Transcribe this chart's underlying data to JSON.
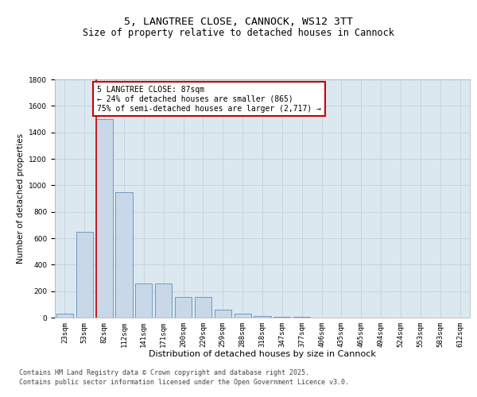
{
  "title1": "5, LANGTREE CLOSE, CANNOCK, WS12 3TT",
  "title2": "Size of property relative to detached houses in Cannock",
  "xlabel": "Distribution of detached houses by size in Cannock",
  "ylabel": "Number of detached properties",
  "categories": [
    "23sqm",
    "53sqm",
    "82sqm",
    "112sqm",
    "141sqm",
    "171sqm",
    "200sqm",
    "229sqm",
    "259sqm",
    "288sqm",
    "318sqm",
    "347sqm",
    "377sqm",
    "406sqm",
    "435sqm",
    "465sqm",
    "494sqm",
    "524sqm",
    "553sqm",
    "583sqm",
    "612sqm"
  ],
  "values": [
    30,
    650,
    1500,
    950,
    260,
    260,
    155,
    155,
    60,
    30,
    15,
    5,
    5,
    2,
    2,
    0,
    0,
    0,
    0,
    0,
    0
  ],
  "bar_color": "#c8d8e8",
  "bar_edge_color": "#6090b8",
  "vline_x_index": 2,
  "vline_color": "#cc0000",
  "annotation_text": "5 LANGTREE CLOSE: 87sqm\n← 24% of detached houses are smaller (865)\n75% of semi-detached houses are larger (2,717) →",
  "annotation_box_facecolor": "#ffffff",
  "annotation_box_edgecolor": "#cc0000",
  "ylim": [
    0,
    1800
  ],
  "yticks": [
    0,
    200,
    400,
    600,
    800,
    1000,
    1200,
    1400,
    1600,
    1800
  ],
  "grid_color": "#c8d4dc",
  "bg_color": "#dce8f0",
  "footer1": "Contains HM Land Registry data © Crown copyright and database right 2025.",
  "footer2": "Contains public sector information licensed under the Open Government Licence v3.0.",
  "title1_fontsize": 9.5,
  "title2_fontsize": 8.5,
  "tick_fontsize": 6.5,
  "ylabel_fontsize": 7.5,
  "xlabel_fontsize": 8,
  "annotation_fontsize": 7,
  "footer_fontsize": 6
}
